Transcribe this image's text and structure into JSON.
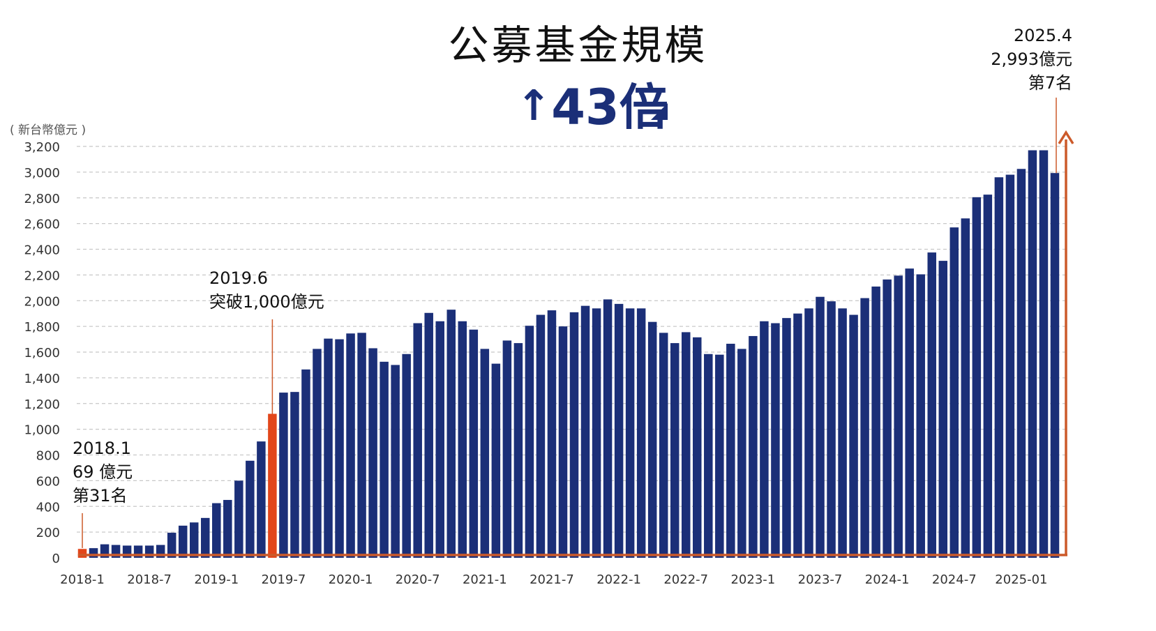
{
  "title": "公募基金規模",
  "growth": {
    "arrow": "↑",
    "value": "43",
    "unit": "倍"
  },
  "y_unit_label": "( 新台幣億元 )",
  "annotations": {
    "start": {
      "line1": "2018.1",
      "line2": "69 億元",
      "line3": "第31名"
    },
    "milestone": {
      "line1": "2019.6",
      "line2": "突破1,000億元"
    },
    "end": {
      "line1": "2025.4",
      "line2": "2,993億元",
      "line3": "第7名"
    }
  },
  "colors": {
    "bar": "#1b2f78",
    "highlight": "#e2461b",
    "line": "#cc5a2a",
    "grid": "#c8c8c8"
  },
  "chart_data": {
    "type": "bar",
    "title": "公募基金規模",
    "ylabel": "( 新台幣億元 )",
    "ylim": [
      0,
      3200
    ],
    "y_ticks": [
      "0",
      "200",
      "400",
      "600",
      "800",
      "1,000",
      "1,200",
      "1,400",
      "1,600",
      "1,800",
      "2,000",
      "2,200",
      "2,400",
      "2,600",
      "2,800",
      "3,000",
      "3,200"
    ],
    "x_tick_labels": [
      "2018-1",
      "2018-7",
      "2019-1",
      "2019-7",
      "2020-1",
      "2020-7",
      "2021-1",
      "2021-7",
      "2022-1",
      "2022-7",
      "2023-1",
      "2023-7",
      "2024-1",
      "2024-7",
      "2025-01"
    ],
    "grid": true,
    "categories": [
      "2018-1",
      "2018-2",
      "2018-3",
      "2018-4",
      "2018-5",
      "2018-6",
      "2018-7",
      "2018-8",
      "2018-9",
      "2018-10",
      "2018-11",
      "2018-12",
      "2019-1",
      "2019-2",
      "2019-3",
      "2019-4",
      "2019-5",
      "2019-6",
      "2019-7",
      "2019-8",
      "2019-9",
      "2019-10",
      "2019-11",
      "2019-12",
      "2020-1",
      "2020-2",
      "2020-3",
      "2020-4",
      "2020-5",
      "2020-6",
      "2020-7",
      "2020-8",
      "2020-9",
      "2020-10",
      "2020-11",
      "2020-12",
      "2021-1",
      "2021-2",
      "2021-3",
      "2021-4",
      "2021-5",
      "2021-6",
      "2021-7",
      "2021-8",
      "2021-9",
      "2021-10",
      "2021-11",
      "2021-12",
      "2022-1",
      "2022-2",
      "2022-3",
      "2022-4",
      "2022-5",
      "2022-6",
      "2022-7",
      "2022-8",
      "2022-9",
      "2022-10",
      "2022-11",
      "2022-12",
      "2023-1",
      "2023-2",
      "2023-3",
      "2023-4",
      "2023-5",
      "2023-6",
      "2023-7",
      "2023-8",
      "2023-9",
      "2023-10",
      "2023-11",
      "2023-12",
      "2024-1",
      "2024-2",
      "2024-3",
      "2024-4",
      "2024-5",
      "2024-6",
      "2024-7",
      "2024-8",
      "2024-9",
      "2024-10",
      "2024-11",
      "2024-12",
      "2025-1",
      "2025-2",
      "2025-3",
      "2025-4"
    ],
    "values": [
      69,
      75,
      105,
      100,
      95,
      95,
      95,
      100,
      195,
      250,
      275,
      310,
      425,
      450,
      600,
      755,
      905,
      1120,
      1285,
      1290,
      1465,
      1625,
      1705,
      1700,
      1745,
      1750,
      1630,
      1525,
      1500,
      1585,
      1825,
      1905,
      1840,
      1930,
      1840,
      1775,
      1625,
      1510,
      1690,
      1670,
      1805,
      1890,
      1925,
      1800,
      1910,
      1960,
      1940,
      2010,
      1975,
      1940,
      1940,
      1835,
      1750,
      1670,
      1755,
      1715,
      1585,
      1580,
      1665,
      1625,
      1725,
      1840,
      1825,
      1865,
      1900,
      1940,
      2030,
      1995,
      1940,
      1890,
      2020,
      2110,
      2165,
      2195,
      2250,
      2205,
      2375,
      2310,
      2570,
      2640,
      2805,
      2825,
      2960,
      2980,
      3025,
      3170,
      3170,
      2993
    ],
    "highlight_categories": [
      "2018-1",
      "2019-6"
    ]
  }
}
